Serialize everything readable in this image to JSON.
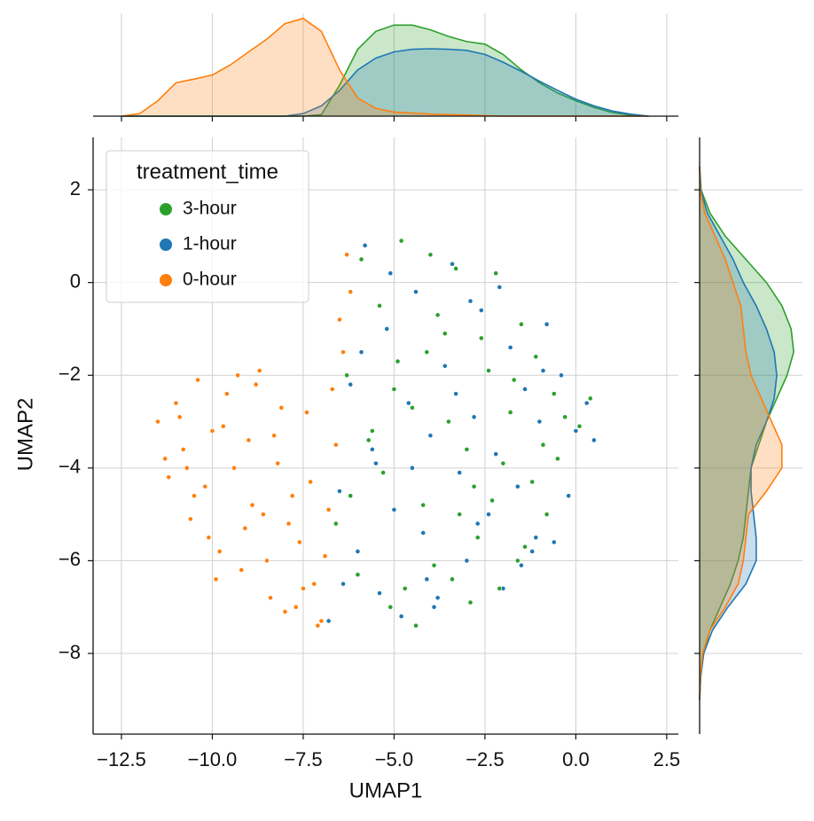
{
  "chart_data": {
    "type": "scatter",
    "xlabel": "UMAP1",
    "ylabel": "UMAP2",
    "xlim": [
      -13.28,
      2.82
    ],
    "ylim": [
      -9.74,
      3.13
    ],
    "xticks": [
      {
        "value": -12.5,
        "label": "−12.5"
      },
      {
        "value": -10,
        "label": "−10.0"
      },
      {
        "value": -7.5,
        "label": "−7.5"
      },
      {
        "value": -5,
        "label": "−5.0"
      },
      {
        "value": -2.5,
        "label": "−2.5"
      },
      {
        "value": 0,
        "label": "0.0"
      },
      {
        "value": 2.5,
        "label": "2.5"
      }
    ],
    "yticks": [
      2,
      0,
      {
        "value": -2,
        "label": "−2"
      },
      {
        "value": -4,
        "label": "−4"
      },
      {
        "value": -6,
        "label": "−6"
      },
      {
        "value": -8,
        "label": "−8"
      }
    ],
    "grid": true,
    "legend_title": "treatment_time",
    "legend_loc": "upper left",
    "series": [
      {
        "name": "3-hour",
        "color": "#2ca02c",
        "x": [
          -6.6,
          -6.3,
          -6.0,
          -5.7,
          -5.4,
          -5.1,
          -4.8,
          -4.5,
          -4.2,
          -3.9,
          -3.6,
          -3.3,
          -3.0,
          -2.7,
          -2.4,
          -2.1,
          -1.8,
          -1.5,
          -1.2,
          -0.9,
          -0.6,
          -0.3,
          0.1,
          0.4,
          -5.9,
          -5.3,
          -4.7,
          -4.1,
          -3.5,
          -2.9,
          -2.3,
          -1.7,
          -1.1,
          -0.5,
          -6.2,
          -5.0,
          -4.4,
          -3.8,
          -3.2,
          -2.6,
          -2.0,
          -1.4,
          -4.9,
          -3.4,
          -2.2,
          -5.6,
          -4.0,
          -2.8,
          -1.6,
          -0.8
        ],
        "y": [
          -5.2,
          -2.0,
          -6.3,
          -3.4,
          -0.5,
          -7.0,
          0.9,
          -2.7,
          -4.8,
          -6.1,
          -1.1,
          0.3,
          -3.6,
          -5.5,
          -1.9,
          -6.6,
          -2.8,
          -0.9,
          -4.3,
          -3.5,
          -2.4,
          -2.9,
          -3.1,
          -2.5,
          0.5,
          -4.1,
          -6.6,
          -1.5,
          -3.0,
          -6.9,
          -4.7,
          -2.1,
          -1.6,
          -3.8,
          -4.6,
          -2.3,
          -7.4,
          -0.7,
          -5.0,
          -1.2,
          -3.9,
          -5.7,
          -1.7,
          -6.4,
          0.2,
          -3.2,
          0.6,
          -4.4,
          -6.0,
          -5.0
        ]
      },
      {
        "name": "1-hour",
        "color": "#1f77b4",
        "x": [
          -6.8,
          -6.5,
          -6.2,
          -6.0,
          -5.8,
          -5.6,
          -5.4,
          -5.2,
          -5.0,
          -4.8,
          -4.6,
          -4.4,
          -4.2,
          -4.0,
          -3.8,
          -3.6,
          -3.4,
          -3.2,
          -3.0,
          -2.8,
          -2.6,
          -2.4,
          -2.2,
          -2.0,
          -1.8,
          -1.6,
          -1.4,
          -1.2,
          -1.0,
          -0.8,
          -0.6,
          -0.4,
          -0.2,
          0.0,
          0.3,
          0.5,
          -6.4,
          -5.9,
          -5.1,
          -4.5,
          -3.9,
          -3.3,
          -2.7,
          -2.1,
          -1.5,
          -0.9,
          -5.5,
          -4.1,
          -2.9,
          -1.1
        ],
        "y": [
          -7.3,
          -4.5,
          -2.2,
          -5.8,
          0.8,
          -3.6,
          -6.7,
          -1.0,
          -4.9,
          -7.2,
          -2.6,
          -0.2,
          -5.4,
          -3.3,
          -6.8,
          -1.8,
          0.4,
          -4.1,
          -6.0,
          -2.9,
          -0.6,
          -5.0,
          -3.7,
          -6.6,
          -1.4,
          -4.4,
          -2.3,
          -5.8,
          -3.0,
          -0.9,
          -5.6,
          -2.0,
          -4.6,
          -3.2,
          -2.6,
          -3.4,
          -6.5,
          -1.5,
          0.2,
          -4.0,
          -7.0,
          -2.4,
          -5.2,
          -0.1,
          -6.1,
          -1.9,
          -3.9,
          -6.4,
          -0.4,
          -5.5
        ]
      },
      {
        "name": "0-hour",
        "color": "#ff7f0e",
        "x": [
          -11.5,
          -11.2,
          -11.0,
          -10.8,
          -10.6,
          -10.4,
          -10.2,
          -10.0,
          -9.8,
          -9.6,
          -9.4,
          -9.2,
          -9.0,
          -8.8,
          -8.6,
          -8.4,
          -8.2,
          -8.0,
          -7.8,
          -7.6,
          -7.4,
          -7.2,
          -7.0,
          -6.8,
          -6.6,
          -6.4,
          -11.3,
          -10.9,
          -10.5,
          -10.1,
          -9.7,
          -9.3,
          -8.9,
          -8.5,
          -8.1,
          -7.7,
          -7.3,
          -6.9,
          -6.5,
          -6.3,
          -10.7,
          -9.9,
          -9.1,
          -8.3,
          -7.5,
          -6.7,
          -8.7,
          -7.9,
          -7.1,
          -6.2
        ],
        "y": [
          -3.0,
          -4.2,
          -2.6,
          -3.6,
          -5.1,
          -2.1,
          -4.4,
          -3.2,
          -5.8,
          -2.4,
          -4.0,
          -6.2,
          -3.4,
          -2.2,
          -5.0,
          -6.8,
          -3.9,
          -7.1,
          -4.6,
          -5.6,
          -2.8,
          -6.5,
          -7.3,
          -4.9,
          -3.5,
          -1.5,
          -3.8,
          -2.9,
          -4.6,
          -5.5,
          -3.1,
          -2.0,
          -4.8,
          -6.0,
          -2.7,
          -7.0,
          -4.3,
          -5.9,
          -0.8,
          0.6,
          -4.0,
          -6.4,
          -5.3,
          -3.3,
          -6.6,
          -2.3,
          -1.9,
          -5.2,
          -7.4,
          -0.2
        ]
      }
    ],
    "marginal_x": {
      "ylim": [
        0,
        0.2
      ],
      "x": [
        -12.5,
        -12,
        -11.5,
        -11,
        -10.5,
        -10,
        -9.5,
        -9,
        -8.5,
        -8,
        -7.5,
        -7,
        -6.5,
        -6,
        -5.5,
        -5,
        -4.5,
        -4,
        -3.5,
        -3,
        -2.5,
        -2,
        -1.5,
        -1,
        -0.5,
        0,
        0.5,
        1,
        1.5,
        2
      ],
      "density": [
        [
          0,
          0,
          0,
          0,
          0,
          0,
          0,
          0,
          0,
          0,
          0,
          0.003,
          0.06,
          0.13,
          0.165,
          0.177,
          0.177,
          0.168,
          0.155,
          0.145,
          0.14,
          0.12,
          0.09,
          0.065,
          0.045,
          0.03,
          0.017,
          0.007,
          0.002,
          0
        ],
        [
          0,
          0,
          0,
          0,
          0,
          0,
          0,
          0,
          0,
          0,
          0.005,
          0.02,
          0.05,
          0.09,
          0.113,
          0.125,
          0.13,
          0.131,
          0.13,
          0.128,
          0.12,
          0.105,
          0.087,
          0.068,
          0.05,
          0.033,
          0.02,
          0.01,
          0.004,
          0
        ],
        [
          0,
          0.005,
          0.03,
          0.065,
          0.072,
          0.08,
          0.1,
          0.125,
          0.15,
          0.18,
          0.19,
          0.165,
          0.09,
          0.035,
          0.015,
          0.008,
          0.006,
          0.004,
          0.003,
          0.002,
          0.001,
          0,
          0,
          0,
          0,
          0,
          0,
          0,
          0,
          0
        ]
      ]
    },
    "marginal_y": {
      "xlim": [
        0,
        0.2
      ],
      "y": [
        2.5,
        2,
        1.5,
        1,
        0.5,
        0,
        -0.5,
        -1,
        -1.5,
        -2,
        -2.5,
        -3,
        -3.5,
        -4,
        -4.5,
        -5,
        -5.5,
        -6,
        -6.5,
        -7,
        -7.5,
        -8,
        -8.5,
        -9
      ],
      "density": [
        [
          0,
          0.003,
          0.02,
          0.05,
          0.09,
          0.13,
          0.16,
          0.178,
          0.183,
          0.17,
          0.15,
          0.13,
          0.115,
          0.1,
          0.095,
          0.09,
          0.085,
          0.075,
          0.06,
          0.04,
          0.02,
          0.008,
          0.002,
          0
        ],
        [
          0,
          0.002,
          0.015,
          0.04,
          0.065,
          0.085,
          0.11,
          0.13,
          0.145,
          0.15,
          0.145,
          0.13,
          0.11,
          0.1,
          0.1,
          0.105,
          0.11,
          0.11,
          0.09,
          0.055,
          0.025,
          0.008,
          0.002,
          0
        ],
        [
          0,
          0.001,
          0.01,
          0.03,
          0.05,
          0.065,
          0.08,
          0.085,
          0.09,
          0.1,
          0.12,
          0.14,
          0.16,
          0.16,
          0.13,
          0.095,
          0.09,
          0.085,
          0.075,
          0.05,
          0.02,
          0.006,
          0.001,
          0
        ]
      ]
    }
  }
}
